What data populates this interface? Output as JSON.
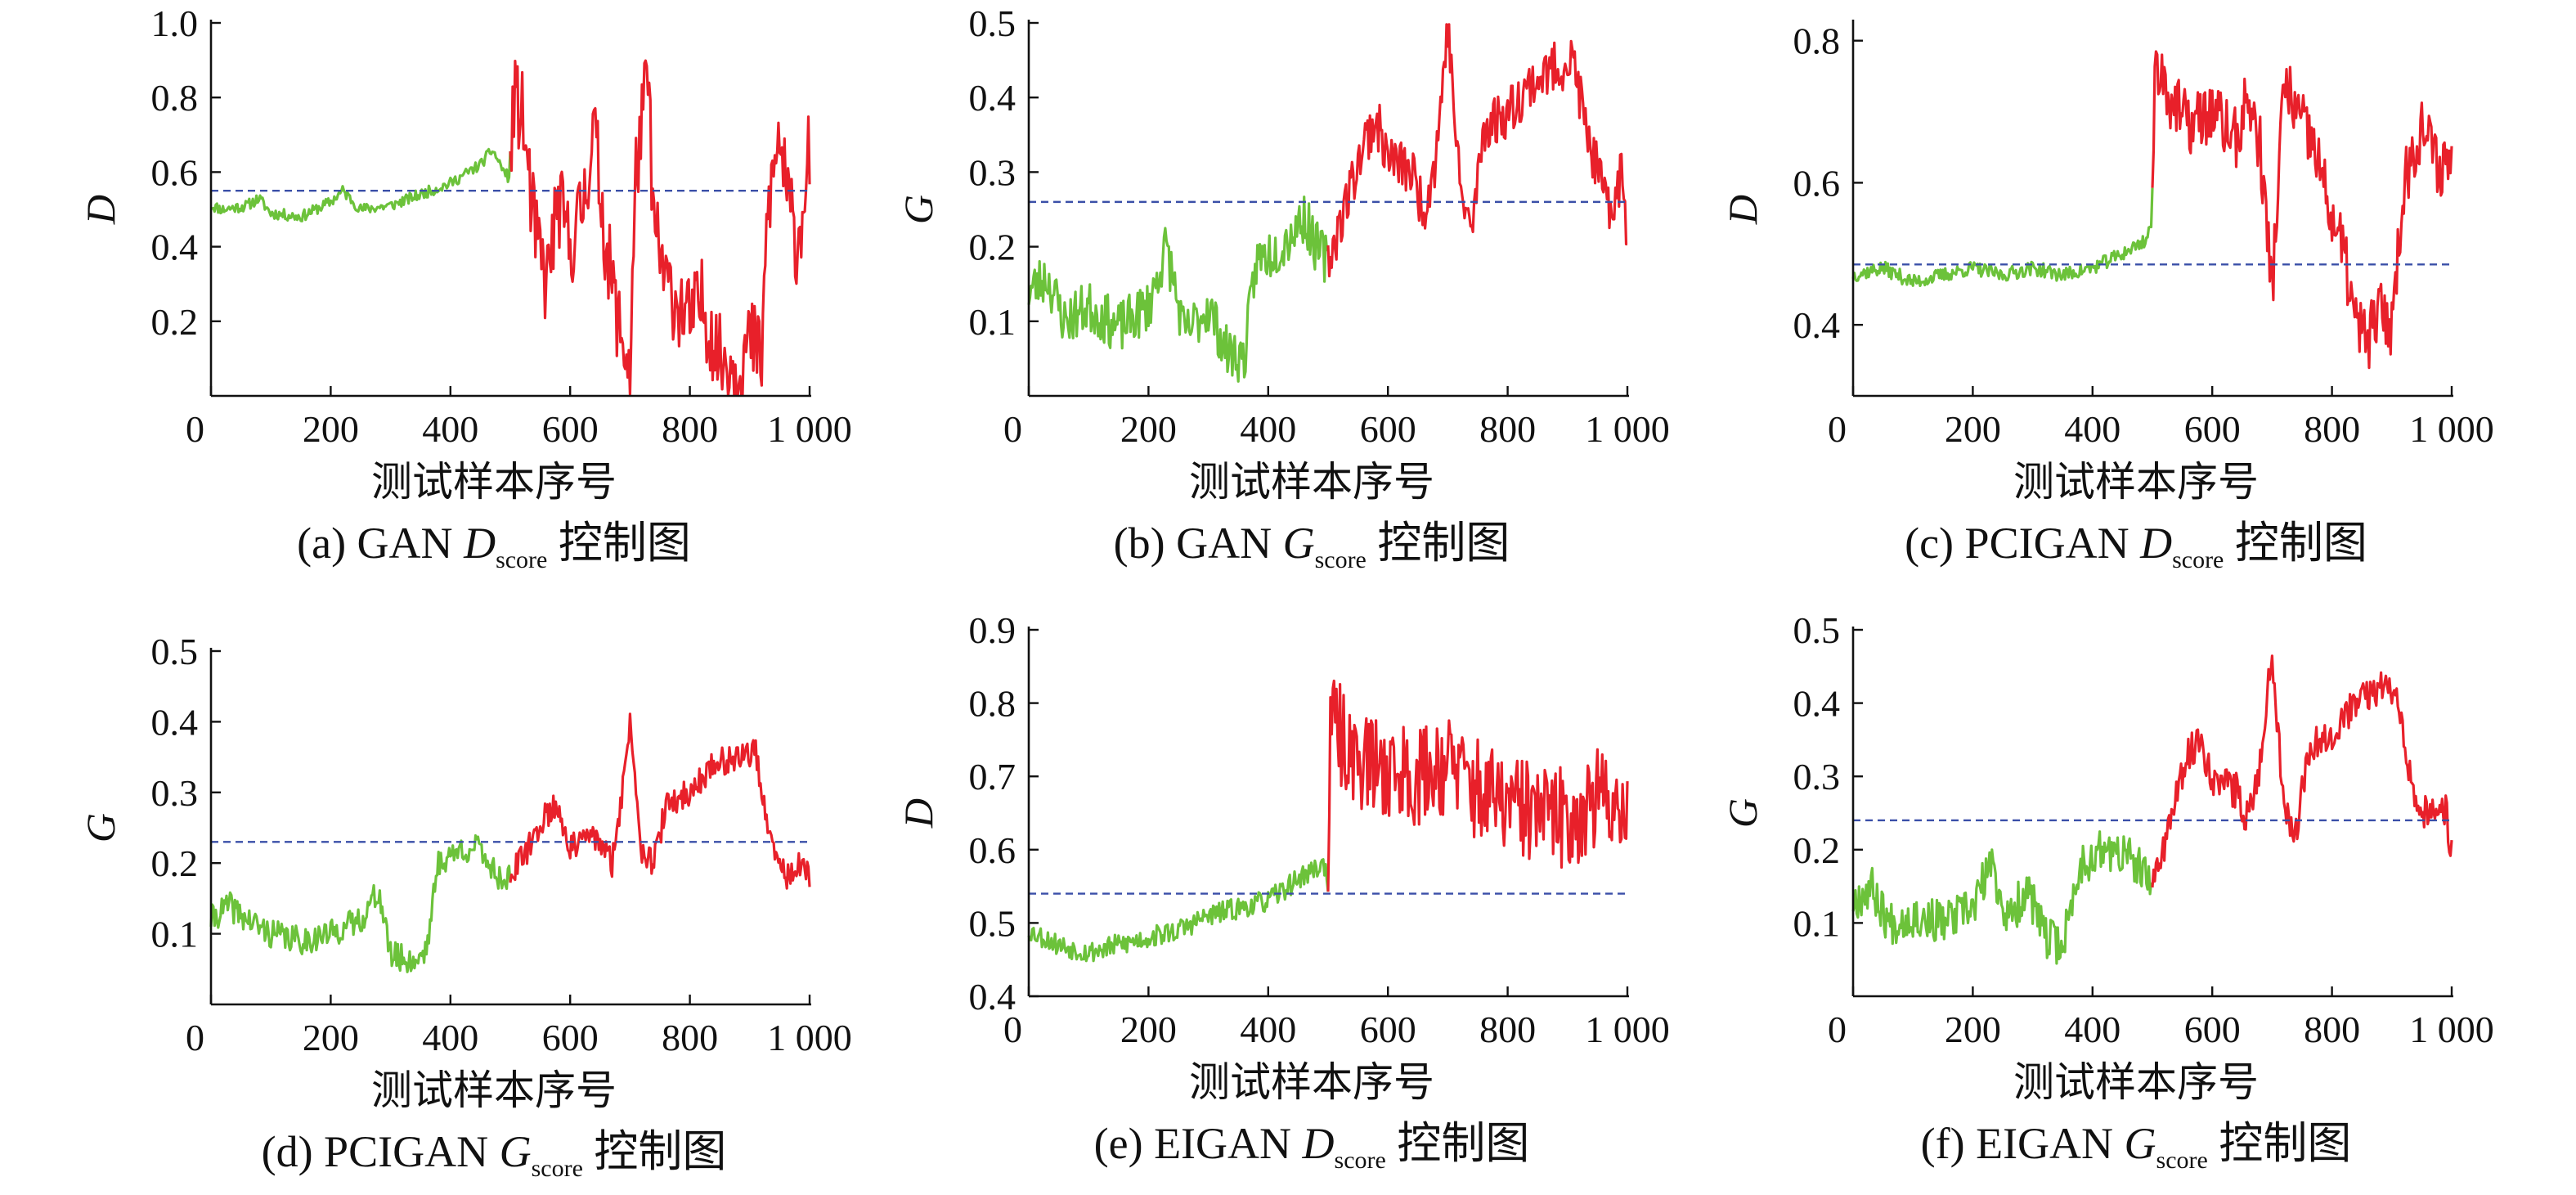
{
  "colors": {
    "normal": "#6cc23a",
    "abnormal": "#e8202a",
    "limit": "#3a4fa8",
    "axis": "#111111"
  },
  "chart_data": [
    {
      "type": "line",
      "id": "a",
      "caption_prefix": "(a) GAN ",
      "caption_var": "D",
      "caption_sub": "score",
      "caption_suffix": " 控制图",
      "xlabel": "测试样本序号",
      "ylabel": "D",
      "xlim": [
        0,
        1000
      ],
      "ylim": [
        0,
        1.0
      ],
      "xticks": [
        "0",
        "200",
        "400",
        "600",
        "800",
        "1 000"
      ],
      "yticks": [
        "0.2",
        "0.4",
        "0.6",
        "0.8",
        "1.0"
      ],
      "ytick_values": [
        0.2,
        0.4,
        0.6,
        0.8,
        1.0
      ],
      "limit": 0.55,
      "split": 500,
      "knots": [
        [
          0,
          0.51
        ],
        [
          20,
          0.5
        ],
        [
          60,
          0.51
        ],
        [
          80,
          0.53
        ],
        [
          100,
          0.49
        ],
        [
          150,
          0.48
        ],
        [
          200,
          0.52
        ],
        [
          220,
          0.55
        ],
        [
          250,
          0.5
        ],
        [
          300,
          0.51
        ],
        [
          350,
          0.54
        ],
        [
          400,
          0.57
        ],
        [
          450,
          0.62
        ],
        [
          470,
          0.66
        ],
        [
          490,
          0.6
        ],
        [
          500,
          0.58
        ],
        [
          505,
          0.8
        ],
        [
          520,
          0.75
        ],
        [
          540,
          0.45
        ],
        [
          560,
          0.3
        ],
        [
          580,
          0.52
        ],
        [
          600,
          0.4
        ],
        [
          620,
          0.5
        ],
        [
          640,
          0.72
        ],
        [
          660,
          0.4
        ],
        [
          680,
          0.2
        ],
        [
          700,
          0.07
        ],
        [
          710,
          0.6
        ],
        [
          730,
          0.86
        ],
        [
          740,
          0.45
        ],
        [
          760,
          0.3
        ],
        [
          800,
          0.2
        ],
        [
          820,
          0.25
        ],
        [
          850,
          0.1
        ],
        [
          880,
          0.08
        ],
        [
          900,
          0.15
        ],
        [
          920,
          0.1
        ],
        [
          930,
          0.5
        ],
        [
          950,
          0.7
        ],
        [
          960,
          0.55
        ],
        [
          980,
          0.4
        ],
        [
          1000,
          0.67
        ]
      ],
      "noise": [
        0.015,
        0.12
      ],
      "seed": 11
    },
    {
      "type": "line",
      "id": "b",
      "caption_prefix": "(b) GAN ",
      "caption_var": "G",
      "caption_sub": "score",
      "caption_suffix": " 控制图",
      "xlabel": "测试样本序号",
      "ylabel": "G",
      "xlim": [
        0,
        1000
      ],
      "ylim": [
        0,
        0.5
      ],
      "xticks": [
        "0",
        "200",
        "400",
        "600",
        "800",
        "1 000"
      ],
      "yticks": [
        "0.1",
        "0.2",
        "0.3",
        "0.4",
        "0.5"
      ],
      "ytick_values": [
        0.1,
        0.2,
        0.3,
        0.4,
        0.5
      ],
      "limit": 0.26,
      "split": 500,
      "knots": [
        [
          0,
          0.14
        ],
        [
          30,
          0.16
        ],
        [
          60,
          0.1
        ],
        [
          100,
          0.12
        ],
        [
          150,
          0.09
        ],
        [
          200,
          0.12
        ],
        [
          230,
          0.2
        ],
        [
          260,
          0.08
        ],
        [
          300,
          0.12
        ],
        [
          330,
          0.06
        ],
        [
          360,
          0.05
        ],
        [
          380,
          0.18
        ],
        [
          420,
          0.2
        ],
        [
          460,
          0.24
        ],
        [
          480,
          0.2
        ],
        [
          500,
          0.18
        ],
        [
          530,
          0.26
        ],
        [
          560,
          0.34
        ],
        [
          580,
          0.37
        ],
        [
          600,
          0.32
        ],
        [
          640,
          0.3
        ],
        [
          660,
          0.25
        ],
        [
          680,
          0.32
        ],
        [
          700,
          0.5
        ],
        [
          720,
          0.28
        ],
        [
          740,
          0.22
        ],
        [
          760,
          0.36
        ],
        [
          800,
          0.38
        ],
        [
          840,
          0.42
        ],
        [
          880,
          0.44
        ],
        [
          910,
          0.45
        ],
        [
          930,
          0.36
        ],
        [
          950,
          0.3
        ],
        [
          970,
          0.24
        ],
        [
          990,
          0.3
        ],
        [
          1000,
          0.21
        ]
      ],
      "noise": [
        0.035,
        0.035
      ],
      "seed": 23
    },
    {
      "type": "line",
      "id": "c",
      "caption_prefix": "(c) PCIGAN ",
      "caption_var": "D",
      "caption_sub": "score",
      "caption_suffix": " 控制图",
      "xlabel": "测试样本序号",
      "ylabel": "D",
      "xlim": [
        0,
        1000
      ],
      "ylim": [
        0.3,
        0.825
      ],
      "xticks": [
        "0",
        "200",
        "400",
        "600",
        "800",
        "1 000"
      ],
      "yticks": [
        "0.4",
        "0.6",
        "0.8"
      ],
      "ytick_values": [
        0.4,
        0.6,
        0.8
      ],
      "limit": 0.485,
      "split": 500,
      "knots": [
        [
          0,
          0.47
        ],
        [
          50,
          0.48
        ],
        [
          100,
          0.46
        ],
        [
          150,
          0.47
        ],
        [
          200,
          0.48
        ],
        [
          250,
          0.47
        ],
        [
          300,
          0.48
        ],
        [
          350,
          0.47
        ],
        [
          400,
          0.48
        ],
        [
          450,
          0.5
        ],
        [
          490,
          0.52
        ],
        [
          500,
          0.55
        ],
        [
          505,
          0.78
        ],
        [
          530,
          0.72
        ],
        [
          560,
          0.68
        ],
        [
          600,
          0.7
        ],
        [
          640,
          0.66
        ],
        [
          660,
          0.72
        ],
        [
          680,
          0.65
        ],
        [
          700,
          0.45
        ],
        [
          720,
          0.74
        ],
        [
          740,
          0.7
        ],
        [
          770,
          0.65
        ],
        [
          800,
          0.55
        ],
        [
          820,
          0.5
        ],
        [
          840,
          0.4
        ],
        [
          860,
          0.38
        ],
        [
          880,
          0.42
        ],
        [
          900,
          0.4
        ],
        [
          920,
          0.6
        ],
        [
          950,
          0.68
        ],
        [
          980,
          0.62
        ],
        [
          1000,
          0.64
        ]
      ],
      "noise": [
        0.01,
        0.045
      ],
      "seed": 37
    },
    {
      "type": "line",
      "id": "d",
      "caption_prefix": "(d) PCIGAN ",
      "caption_var": "G",
      "caption_sub": "score",
      "caption_suffix": " 控制图",
      "xlabel": "测试样本序号",
      "ylabel": "G",
      "xlim": [
        0,
        1000
      ],
      "ylim": [
        0,
        0.5
      ],
      "xticks": [
        "0",
        "200",
        "400",
        "600",
        "800",
        "1 000"
      ],
      "yticks": [
        "0.1",
        "0.2",
        "0.3",
        "0.4",
        "0.5"
      ],
      "ytick_values": [
        0.1,
        0.2,
        0.3,
        0.4,
        0.5
      ],
      "limit": 0.23,
      "split": 500,
      "knots": [
        [
          0,
          0.12
        ],
        [
          30,
          0.14
        ],
        [
          60,
          0.12
        ],
        [
          100,
          0.1
        ],
        [
          150,
          0.09
        ],
        [
          200,
          0.1
        ],
        [
          250,
          0.12
        ],
        [
          280,
          0.16
        ],
        [
          300,
          0.07
        ],
        [
          340,
          0.06
        ],
        [
          360,
          0.08
        ],
        [
          380,
          0.2
        ],
        [
          420,
          0.22
        ],
        [
          450,
          0.22
        ],
        [
          480,
          0.18
        ],
        [
          500,
          0.18
        ],
        [
          530,
          0.22
        ],
        [
          560,
          0.27
        ],
        [
          580,
          0.28
        ],
        [
          600,
          0.22
        ],
        [
          640,
          0.24
        ],
        [
          670,
          0.2
        ],
        [
          690,
          0.32
        ],
        [
          700,
          0.4
        ],
        [
          720,
          0.22
        ],
        [
          740,
          0.2
        ],
        [
          760,
          0.28
        ],
        [
          800,
          0.3
        ],
        [
          840,
          0.34
        ],
        [
          880,
          0.35
        ],
        [
          910,
          0.36
        ],
        [
          930,
          0.24
        ],
        [
          960,
          0.18
        ],
        [
          990,
          0.2
        ],
        [
          1000,
          0.17
        ]
      ],
      "noise": [
        0.02,
        0.02
      ],
      "seed": 41
    },
    {
      "type": "line",
      "id": "e",
      "caption_prefix": "(e) EIGAN ",
      "caption_var": "D",
      "caption_sub": "score",
      "caption_suffix": " 控制图",
      "xlabel": "测试样本序号",
      "ylabel": "D",
      "xlim": [
        0,
        1000
      ],
      "ylim": [
        0.4,
        0.9
      ],
      "xticks": [
        "0",
        "200",
        "400",
        "600",
        "800",
        "1 000"
      ],
      "yticks": [
        "0.4",
        "0.5",
        "0.6",
        "0.7",
        "0.8",
        "0.9"
      ],
      "ytick_values": [
        0.4,
        0.5,
        0.6,
        0.7,
        0.8,
        0.9
      ],
      "limit": 0.54,
      "split": 500,
      "knots": [
        [
          0,
          0.49
        ],
        [
          50,
          0.47
        ],
        [
          100,
          0.46
        ],
        [
          150,
          0.47
        ],
        [
          200,
          0.48
        ],
        [
          250,
          0.49
        ],
        [
          300,
          0.51
        ],
        [
          350,
          0.52
        ],
        [
          400,
          0.53
        ],
        [
          450,
          0.56
        ],
        [
          490,
          0.58
        ],
        [
          500,
          0.57
        ],
        [
          505,
          0.78
        ],
        [
          530,
          0.74
        ],
        [
          560,
          0.72
        ],
        [
          600,
          0.71
        ],
        [
          650,
          0.7
        ],
        [
          700,
          0.72
        ],
        [
          750,
          0.68
        ],
        [
          800,
          0.66
        ],
        [
          850,
          0.65
        ],
        [
          900,
          0.64
        ],
        [
          950,
          0.67
        ],
        [
          1000,
          0.66
        ]
      ],
      "noise": [
        0.015,
        0.07
      ],
      "seed": 53
    },
    {
      "type": "line",
      "id": "f",
      "caption_prefix": "(f) EIGAN ",
      "caption_var": "G",
      "caption_sub": "score",
      "caption_suffix": " 控制图",
      "xlabel": "测试样本序号",
      "ylabel": "G",
      "xlim": [
        0,
        1000
      ],
      "ylim": [
        0,
        0.5
      ],
      "xticks": [
        "0",
        "200",
        "400",
        "600",
        "800",
        "1 000"
      ],
      "yticks": [
        "0.1",
        "0.2",
        "0.3",
        "0.4",
        "0.5"
      ],
      "ytick_values": [
        0.1,
        0.2,
        0.3,
        0.4,
        0.5
      ],
      "limit": 0.24,
      "split": 500,
      "knots": [
        [
          0,
          0.13
        ],
        [
          30,
          0.15
        ],
        [
          60,
          0.1
        ],
        [
          100,
          0.11
        ],
        [
          150,
          0.1
        ],
        [
          200,
          0.12
        ],
        [
          230,
          0.18
        ],
        [
          260,
          0.1
        ],
        [
          290,
          0.15
        ],
        [
          320,
          0.08
        ],
        [
          350,
          0.07
        ],
        [
          380,
          0.18
        ],
        [
          420,
          0.2
        ],
        [
          460,
          0.19
        ],
        [
          490,
          0.16
        ],
        [
          500,
          0.15
        ],
        [
          530,
          0.24
        ],
        [
          560,
          0.33
        ],
        [
          580,
          0.35
        ],
        [
          600,
          0.3
        ],
        [
          640,
          0.28
        ],
        [
          660,
          0.24
        ],
        [
          680,
          0.32
        ],
        [
          700,
          0.47
        ],
        [
          720,
          0.26
        ],
        [
          740,
          0.22
        ],
        [
          760,
          0.34
        ],
        [
          800,
          0.36
        ],
        [
          840,
          0.4
        ],
        [
          880,
          0.42
        ],
        [
          910,
          0.42
        ],
        [
          930,
          0.3
        ],
        [
          960,
          0.24
        ],
        [
          990,
          0.26
        ],
        [
          1000,
          0.19
        ]
      ],
      "noise": [
        0.03,
        0.025
      ],
      "seed": 67
    }
  ]
}
